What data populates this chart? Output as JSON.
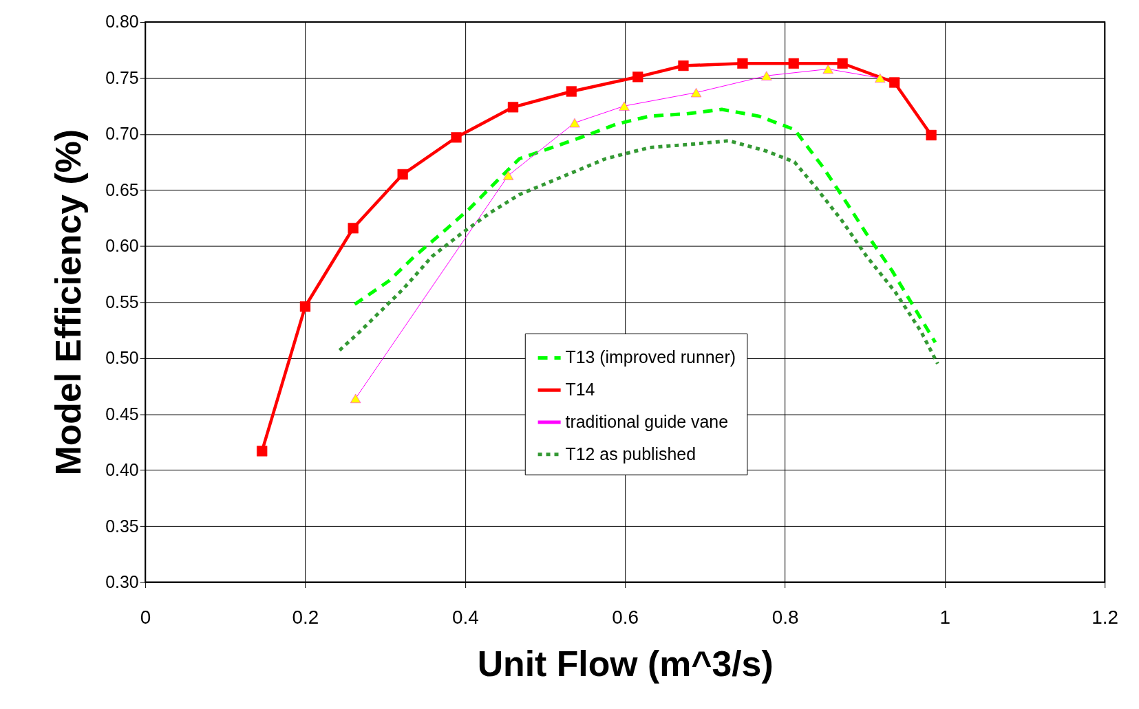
{
  "chart_data": {
    "type": "line",
    "xlabel": "Unit Flow (m^3/s)",
    "ylabel": "Model Efficiency (%)",
    "xlim": [
      0,
      1.2
    ],
    "xticks": [
      0,
      0.2,
      0.4,
      0.6,
      0.8,
      1,
      1.2
    ],
    "ylim": [
      0.3,
      0.8
    ],
    "yticks": [
      {
        "value": 0.3,
        "label": "0.30"
      },
      {
        "value": 0.35,
        "label": "0.35"
      },
      {
        "value": 0.4,
        "label": "0.40"
      },
      {
        "value": 0.45,
        "label": "0.45"
      },
      {
        "value": 0.5,
        "label": "0.50"
      },
      {
        "value": 0.55,
        "label": "0.55"
      },
      {
        "value": 0.6,
        "label": "0.60"
      },
      {
        "value": 0.65,
        "label": "0.65"
      },
      {
        "value": 0.7,
        "label": "0.70"
      },
      {
        "value": 0.75,
        "label": "0.75"
      },
      {
        "value": 0.8,
        "label": "0.80"
      }
    ],
    "grid": true,
    "legend": "bottom right",
    "series": [
      {
        "name": "T13 (improved runner)",
        "color": "#00ff00",
        "line_style": "dashed",
        "marker": "none",
        "x": [
          0.262,
          0.305,
          0.337,
          0.37,
          0.405,
          0.441,
          0.468,
          0.509,
          0.549,
          0.59,
          0.631,
          0.676,
          0.721,
          0.767,
          0.812,
          0.848,
          0.875,
          0.902,
          0.934,
          0.961,
          0.988
        ],
        "values": [
          0.548,
          0.569,
          0.591,
          0.611,
          0.633,
          0.659,
          0.678,
          0.688,
          0.698,
          0.709,
          0.716,
          0.718,
          0.722,
          0.716,
          0.704,
          0.67,
          0.641,
          0.611,
          0.578,
          0.546,
          0.514
        ]
      },
      {
        "name": "T14",
        "color": "#ff0000",
        "line_style": "solid",
        "marker": "square",
        "x": [
          0.146,
          0.2,
          0.26,
          0.322,
          0.389,
          0.46,
          0.533,
          0.616,
          0.673,
          0.747,
          0.811,
          0.872,
          0.937,
          0.983
        ],
        "values": [
          0.417,
          0.546,
          0.616,
          0.664,
          0.697,
          0.724,
          0.738,
          0.751,
          0.761,
          0.763,
          0.763,
          0.763,
          0.746,
          0.699
        ]
      },
      {
        "name": "traditional guide vane",
        "color": "#ff00ff",
        "colors": [
          "#ffff00",
          "#ffff00",
          "#ffff00",
          "#ffff00",
          "#ffff00",
          "#ffff00",
          "#ffff00",
          "#ffff00"
        ],
        "line_style": "solid",
        "marker": "triangle",
        "x": [
          0.263,
          0.454,
          0.537,
          0.599,
          0.689,
          0.777,
          0.854,
          0.919
        ],
        "values": [
          0.464,
          0.663,
          0.71,
          0.725,
          0.737,
          0.752,
          0.758,
          0.75
        ]
      },
      {
        "name": "T12 as published",
        "color": "#339933",
        "line_style": "dotted",
        "marker": "none",
        "x": [
          0.243,
          0.269,
          0.296,
          0.323,
          0.359,
          0.395,
          0.432,
          0.468,
          0.522,
          0.576,
          0.631,
          0.685,
          0.73,
          0.776,
          0.812,
          0.839,
          0.871,
          0.902,
          0.938,
          0.97,
          0.991
        ],
        "values": [
          0.507,
          0.524,
          0.543,
          0.562,
          0.591,
          0.611,
          0.63,
          0.646,
          0.662,
          0.678,
          0.688,
          0.691,
          0.694,
          0.685,
          0.675,
          0.652,
          0.623,
          0.591,
          0.559,
          0.524,
          0.495
        ]
      }
    ]
  }
}
